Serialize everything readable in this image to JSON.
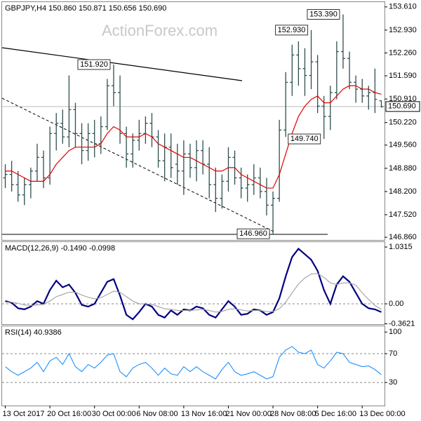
{
  "chart_data": [
    {
      "type": "ohlc",
      "title": "GBPJPY,H4 150.860 150.871 150.656 150.690",
      "watermark": "ActionForex.com",
      "color": "#2f4f4f",
      "categories": [
        "13 Oct 2017",
        null,
        null,
        null,
        null,
        null,
        null,
        "20 Oct 16:00",
        null,
        null,
        null,
        null,
        null,
        null,
        "30 Oct 00:00",
        null,
        null,
        null,
        null,
        null,
        null,
        "6 Nov 08:00",
        null,
        null,
        null,
        null,
        null,
        null,
        "13 Nov 16:00",
        null,
        null,
        null,
        null,
        null,
        null,
        "21 Nov 00:00",
        null,
        null,
        null,
        null,
        null,
        null,
        "28 Nov 08:00",
        null,
        null,
        null,
        null,
        null,
        null,
        "5 Dec 16:00",
        null,
        null,
        null,
        null,
        null,
        null,
        "13 Dec 00:00",
        null,
        null,
        null
      ],
      "open": [
        148.6,
        148.7,
        148.4,
        148.1,
        148.4,
        148.8,
        149.2,
        148.6,
        149.9,
        150.2,
        149.8,
        150.6,
        149.9,
        149.4,
        149.9,
        149.6,
        150.1,
        151.3,
        151.1,
        149.9,
        149.3,
        149.7,
        149.9,
        150.2,
        149.8,
        149.1,
        149.5,
        149.0,
        148.8,
        149.3,
        148.9,
        149.4,
        149.0,
        148.4,
        148.0,
        148.5,
        149.2,
        148.6,
        148.3,
        148.4,
        148.6,
        148.2,
        147.8,
        148.0,
        150.0,
        151.4,
        152.2,
        151.8,
        151.6,
        152.0,
        150.7,
        150.4,
        151.1,
        152.3,
        152.1,
        151.4,
        151.2,
        151.0,
        151.1,
        150.86
      ],
      "high": [
        149.0,
        149.1,
        148.8,
        148.6,
        148.9,
        149.6,
        149.4,
        150.1,
        150.5,
        150.6,
        151.6,
        150.8,
        150.2,
        150.2,
        150.3,
        150.4,
        151.5,
        151.92,
        151.6,
        150.1,
        149.9,
        150.3,
        150.4,
        150.5,
        150.0,
        149.9,
        149.9,
        149.6,
        149.7,
        149.6,
        149.7,
        149.7,
        149.5,
        148.9,
        148.7,
        149.5,
        149.4,
        148.9,
        148.7,
        149.0,
        148.9,
        148.6,
        148.2,
        150.3,
        151.7,
        152.5,
        152.6,
        152.4,
        152.93,
        152.2,
        151.0,
        151.3,
        152.6,
        153.39,
        152.3,
        151.6,
        151.5,
        151.3,
        151.8,
        150.871
      ],
      "low": [
        148.3,
        148.2,
        147.9,
        147.8,
        148.0,
        148.5,
        148.3,
        148.4,
        149.4,
        149.6,
        149.5,
        149.5,
        149.0,
        149.1,
        149.2,
        149.3,
        150.0,
        150.7,
        149.6,
        148.9,
        148.9,
        149.4,
        149.6,
        149.5,
        148.9,
        148.5,
        148.6,
        148.4,
        148.1,
        148.6,
        148.5,
        148.7,
        148.0,
        147.6,
        147.7,
        148.2,
        148.4,
        148.0,
        147.9,
        148.1,
        148.0,
        147.5,
        146.96,
        147.9,
        149.8,
        151.0,
        151.3,
        151.0,
        151.2,
        150.5,
        149.74,
        150.0,
        150.9,
        151.8,
        151.2,
        150.8,
        150.8,
        150.6,
        150.5,
        150.656
      ],
      "close": [
        148.7,
        148.4,
        148.1,
        148.4,
        148.8,
        149.2,
        148.6,
        149.9,
        150.2,
        149.8,
        150.6,
        149.9,
        149.4,
        149.9,
        149.6,
        150.1,
        151.3,
        151.1,
        149.9,
        149.3,
        149.7,
        149.9,
        150.2,
        149.8,
        149.1,
        149.5,
        148.9,
        148.8,
        149.3,
        148.9,
        149.4,
        149.0,
        148.4,
        148.0,
        148.5,
        149.2,
        148.6,
        148.3,
        148.4,
        148.6,
        148.2,
        147.8,
        148.0,
        150.0,
        151.4,
        152.2,
        151.8,
        151.6,
        152.0,
        150.7,
        150.4,
        151.1,
        152.3,
        152.1,
        151.4,
        151.2,
        151.0,
        151.1,
        150.9,
        150.69
      ],
      "moving_average": {
        "color": "#e00000",
        "values": [
          148.8,
          148.8,
          148.7,
          148.6,
          148.5,
          148.5,
          148.5,
          148.7,
          149.0,
          149.2,
          149.4,
          149.5,
          149.5,
          149.5,
          149.5,
          149.6,
          149.9,
          150.1,
          150.0,
          149.8,
          149.8,
          149.8,
          149.9,
          149.8,
          149.6,
          149.5,
          149.4,
          149.3,
          149.2,
          149.2,
          149.1,
          149.0,
          148.9,
          148.8,
          148.8,
          148.9,
          148.9,
          148.7,
          148.6,
          148.5,
          148.4,
          148.3,
          148.3,
          148.7,
          149.3,
          149.9,
          150.4,
          150.7,
          150.9,
          151.0,
          150.8,
          150.8,
          151.0,
          151.2,
          151.3,
          151.3,
          151.2,
          151.2,
          151.1,
          151.05
        ]
      },
      "current_price": {
        "value": 150.69,
        "label": "150.690"
      },
      "annotations": [
        {
          "value": 151.92,
          "label": "151.920"
        },
        {
          "value": 152.93,
          "label": "152.930"
        },
        {
          "value": 153.39,
          "label": "153.390"
        },
        {
          "value": 149.74,
          "label": "149.740"
        },
        {
          "value": 146.96,
          "label": "146.960"
        }
      ],
      "ylim": [
        146.78,
        153.75
      ],
      "yticks": [
        {
          "value": 153.61,
          "label": "153.610"
        },
        {
          "value": 152.93,
          "label": "152.930"
        },
        {
          "value": 152.26,
          "label": "152.260"
        },
        {
          "value": 151.59,
          "label": "151.590"
        },
        {
          "value": 150.91,
          "label": "150.910"
        },
        {
          "value": 150.22,
          "label": "150.220"
        },
        {
          "value": 149.56,
          "label": "149.560"
        },
        {
          "value": 148.88,
          "label": "148.880"
        },
        {
          "value": 148.2,
          "label": "148.200"
        },
        {
          "value": 147.52,
          "label": "147.520"
        },
        {
          "value": 146.86,
          "label": "146.860"
        }
      ]
    },
    {
      "type": "line",
      "title": "MACD(12,26,9) -0.1490 -0.0998",
      "series": [
        {
          "color": "#000080",
          "values": [
            0.05,
            0.02,
            -0.08,
            -0.1,
            -0.05,
            0.05,
            0.0,
            0.25,
            0.42,
            0.3,
            0.35,
            0.2,
            -0.02,
            -0.05,
            0.0,
            0.2,
            0.4,
            0.45,
            0.15,
            -0.2,
            -0.28,
            -0.15,
            0.0,
            -0.05,
            -0.2,
            -0.25,
            -0.12,
            -0.2,
            -0.1,
            -0.12,
            -0.05,
            -0.08,
            -0.2,
            -0.25,
            -0.1,
            0.05,
            -0.05,
            -0.2,
            -0.18,
            -0.1,
            -0.12,
            -0.2,
            -0.15,
            0.1,
            0.5,
            0.85,
            1.0,
            0.9,
            0.8,
            0.6,
            0.25,
            0.0,
            0.35,
            0.5,
            0.4,
            0.2,
            0.0,
            -0.08,
            -0.1,
            -0.149
          ]
        },
        {
          "color": "#a0a0a0",
          "values": [
            0.03,
            0.03,
            0.01,
            -0.02,
            -0.03,
            -0.02,
            -0.01,
            0.05,
            0.13,
            0.17,
            0.21,
            0.21,
            0.16,
            0.12,
            0.09,
            0.11,
            0.17,
            0.23,
            0.21,
            0.13,
            0.05,
            0.0,
            0.0,
            -0.01,
            -0.05,
            -0.09,
            -0.1,
            -0.12,
            -0.12,
            -0.12,
            -0.11,
            -0.1,
            -0.12,
            -0.15,
            -0.14,
            -0.1,
            -0.09,
            -0.11,
            -0.13,
            -0.12,
            -0.12,
            -0.14,
            -0.14,
            -0.09,
            0.03,
            0.2,
            0.36,
            0.47,
            0.54,
            0.55,
            0.48,
            0.38,
            0.35,
            0.38,
            0.38,
            0.34,
            0.2,
            0.08,
            -0.03,
            -0.0998
          ]
        }
      ],
      "reference_lines": [
        0
      ],
      "ylim": [
        -0.369,
        1.121
      ],
      "yticks": [
        1.0315,
        {
          "value": 0,
          "label": "0.00"
        },
        -0.3621
      ]
    },
    {
      "type": "line",
      "title": "RSI(14) 40.9386",
      "series": [
        {
          "color": "#1e90ff",
          "values": [
            52,
            45,
            40,
            45,
            50,
            58,
            45,
            60,
            65,
            55,
            70,
            52,
            45,
            55,
            50,
            58,
            68,
            70,
            45,
            38,
            50,
            55,
            58,
            50,
            40,
            50,
            42,
            40,
            52,
            45,
            52,
            45,
            40,
            35,
            48,
            58,
            45,
            40,
            42,
            45,
            40,
            35,
            38,
            65,
            75,
            80,
            72,
            70,
            75,
            55,
            50,
            60,
            72,
            70,
            58,
            55,
            52,
            53,
            48,
            40.9386
          ]
        }
      ],
      "reference_lines": [
        70,
        30
      ],
      "ylim": [
        -2,
        108
      ],
      "yticks": [
        100,
        70,
        30
      ]
    }
  ]
}
